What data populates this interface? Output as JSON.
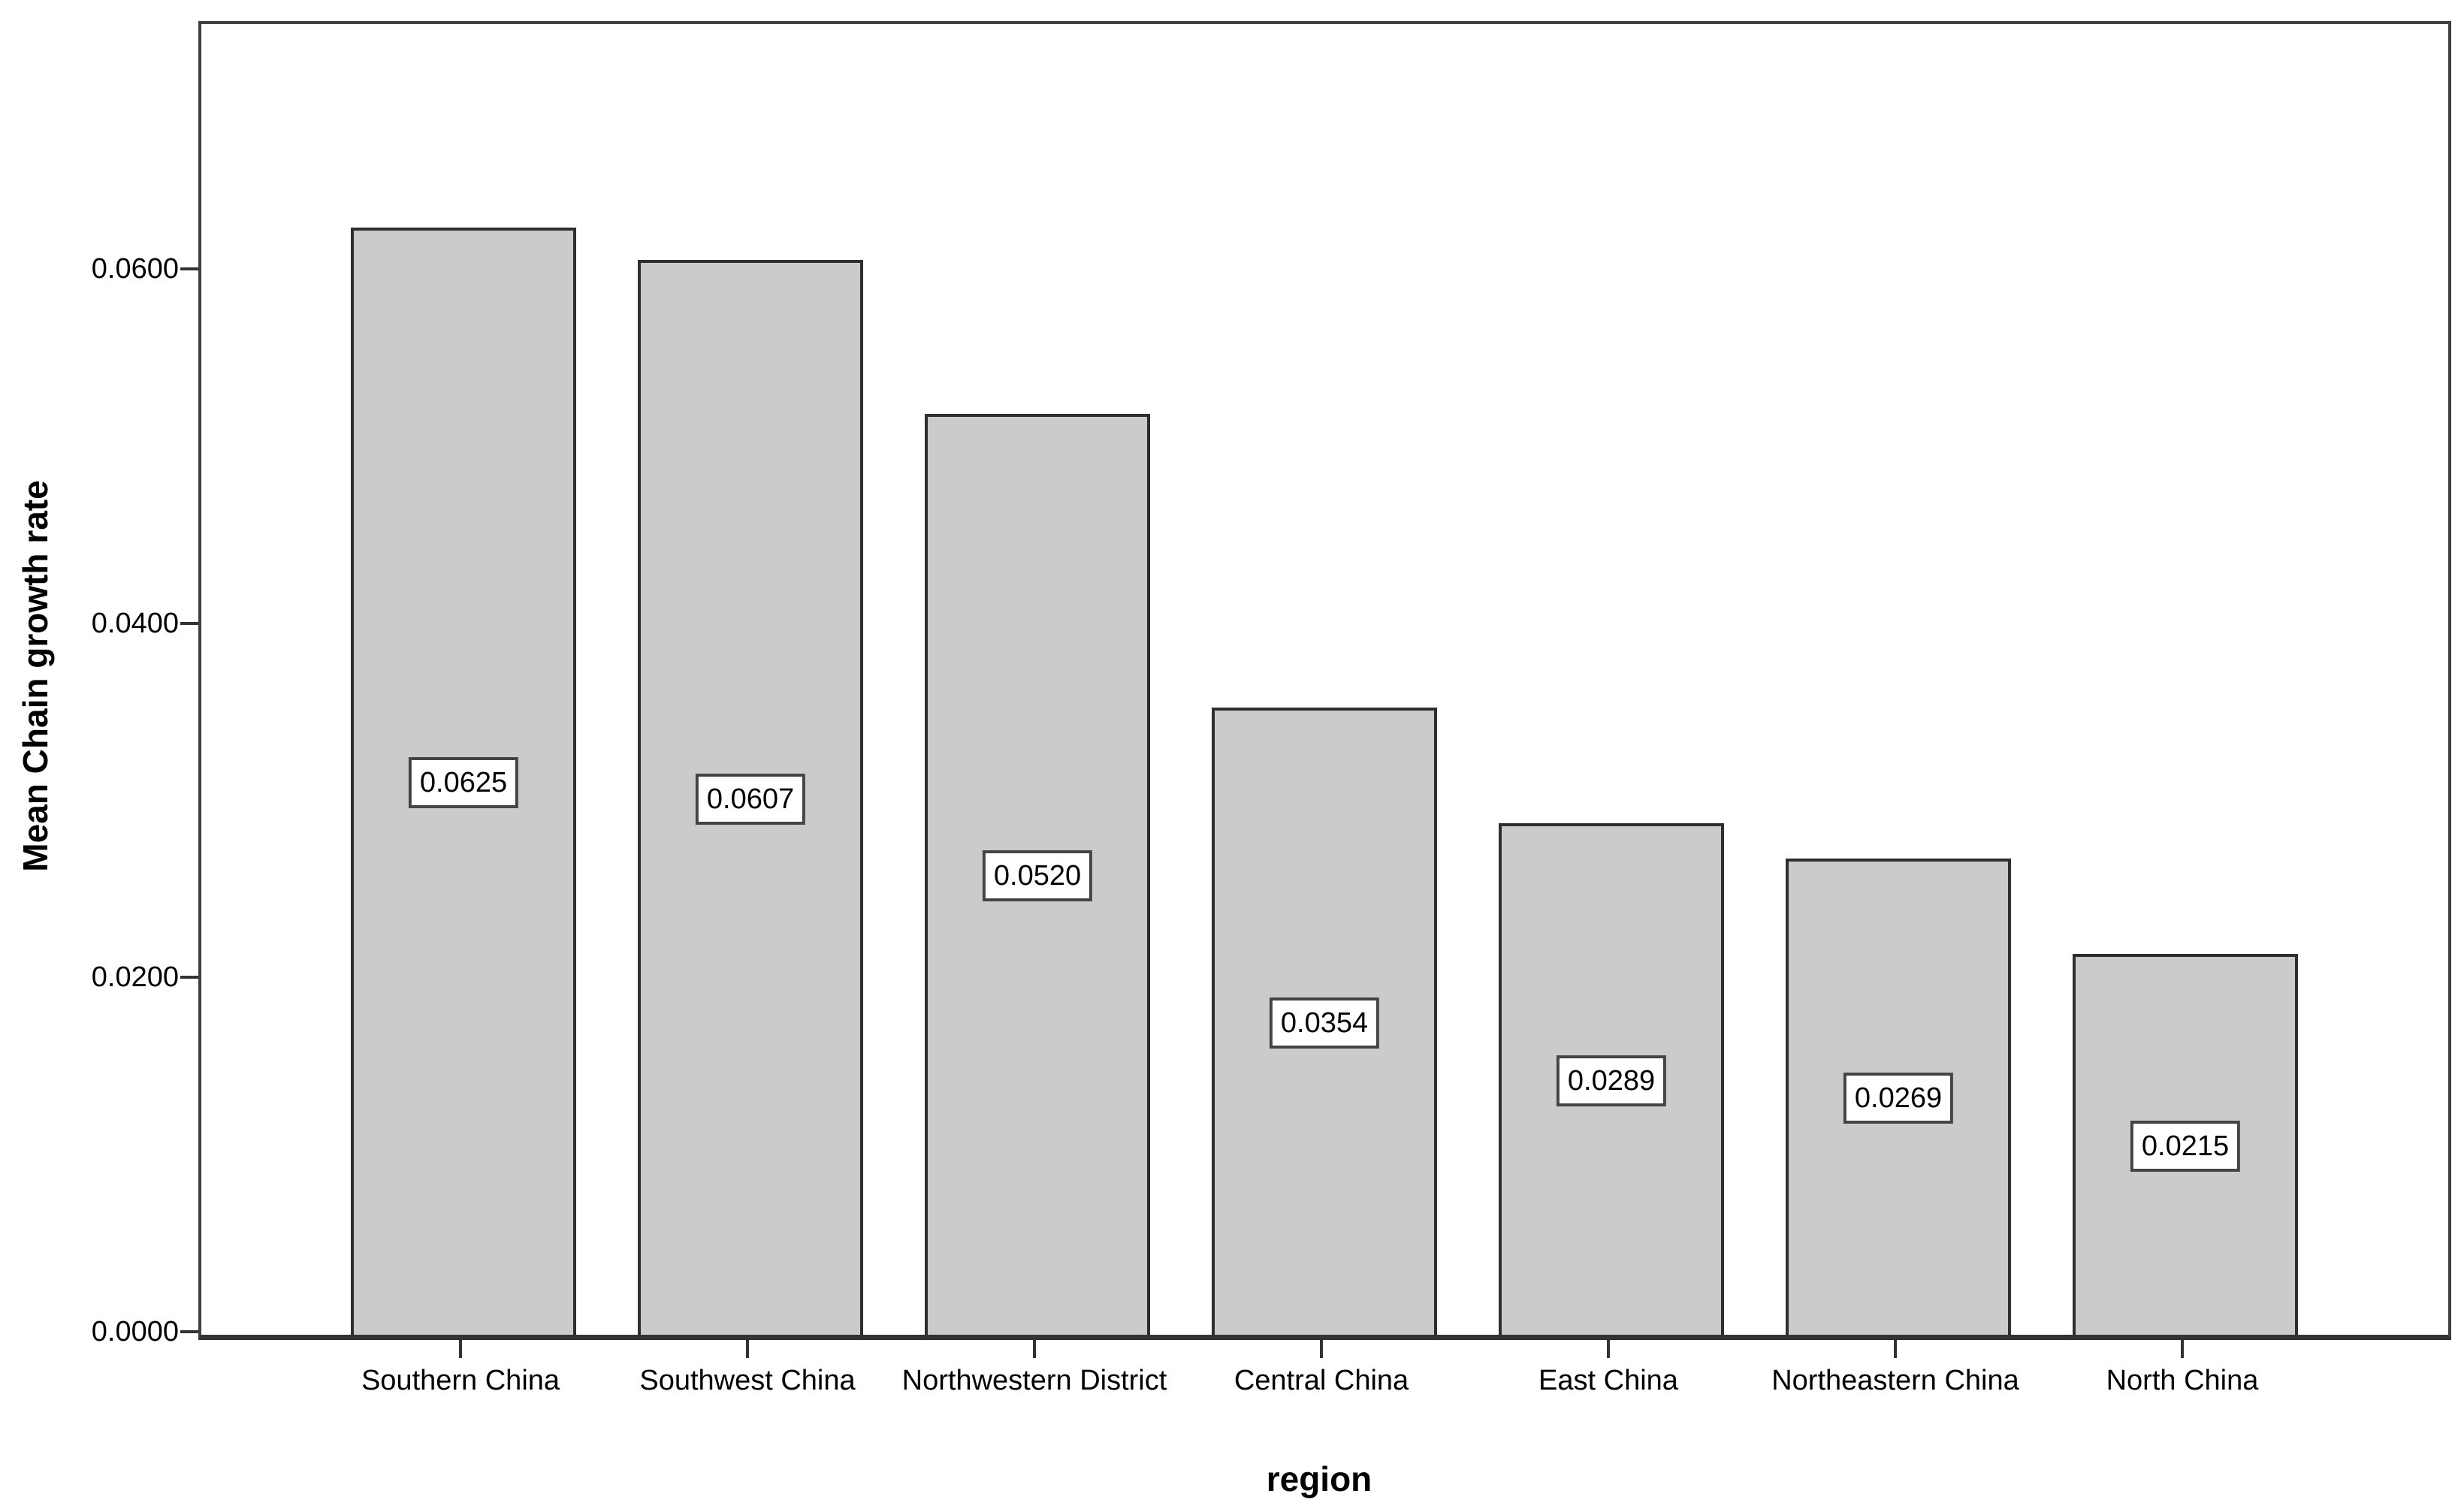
{
  "chart_data": {
    "type": "bar",
    "title": "",
    "categories": [
      "Southern China",
      "Southwest China",
      "Northwestern District",
      "Central China",
      "East China",
      "Northeastern China",
      "North China"
    ],
    "values": [
      0.0625,
      0.0607,
      0.052,
      0.0354,
      0.0289,
      0.0269,
      0.0215
    ],
    "bar_labels": [
      "0.0625",
      "0.0607",
      "0.0520",
      "0.0354",
      "0.0289",
      "0.0269",
      "0.0215"
    ],
    "xlabel": "region",
    "ylabel": "Mean Chain growth rate",
    "ylim": [
      0,
      0.074
    ],
    "yticks": [
      {
        "value": 0.0,
        "label": "0.0000"
      },
      {
        "value": 0.02,
        "label": "0.0200"
      },
      {
        "value": 0.04,
        "label": "0.0400"
      },
      {
        "value": 0.06,
        "label": "0.0600"
      }
    ],
    "legend": "none",
    "grid": "off",
    "colors": {
      "bar_fill": "#cbcbcb",
      "bar_border": "#2e2e2e",
      "frame_border": "#404040",
      "axis_line": "#333333",
      "text": "#000000",
      "value_box_bg": "#ffffff",
      "value_box_border": "#444444"
    }
  }
}
